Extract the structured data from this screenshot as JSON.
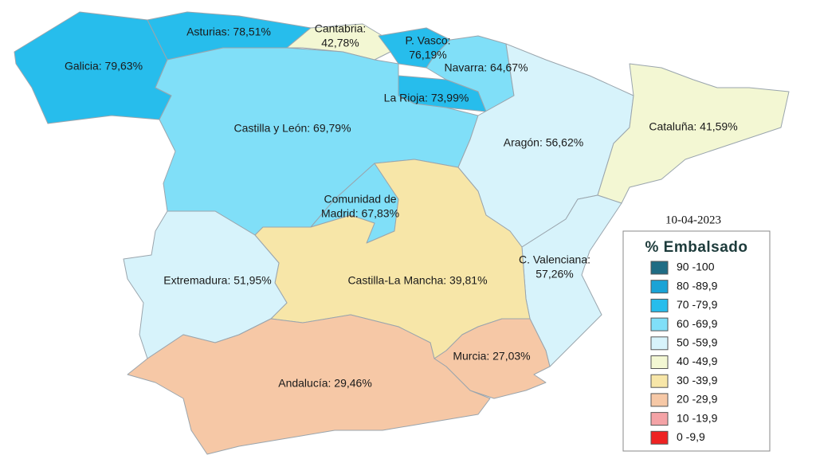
{
  "map": {
    "date": "10-04-2023",
    "regions": [
      {
        "lines": [
          "Galicia: 79,63%"
        ],
        "color": "#27bdec"
      },
      {
        "lines": [
          "Asturias: 78,51%"
        ],
        "color": "#27bdec"
      },
      {
        "lines": [
          "Cantabria:",
          "42,78%"
        ],
        "color": "#f3f7d3"
      },
      {
        "lines": [
          "P. Vasco:",
          "76,19%"
        ],
        "color": "#27bdec"
      },
      {
        "lines": [
          "Navarra: 64,67%"
        ],
        "color": "#80dff8"
      },
      {
        "lines": [
          "La Rioja: 73,99%"
        ],
        "color": "#27bdec"
      },
      {
        "lines": [
          "Castilla y León: 69,79%"
        ],
        "color": "#80dff8"
      },
      {
        "lines": [
          "Comunidad de",
          "Madrid: 67,83%"
        ],
        "color": "#80dff8"
      },
      {
        "lines": [
          "Aragón: 56,62%"
        ],
        "color": "#d7f3fb"
      },
      {
        "lines": [
          "Cataluña: 41,59%"
        ],
        "color": "#f3f7d3"
      },
      {
        "lines": [
          "C. Valenciana:",
          "57,26%"
        ],
        "color": "#d7f3fb"
      },
      {
        "lines": [
          "Castilla-La Mancha: 39,81%"
        ],
        "color": "#f7e6a8"
      },
      {
        "lines": [
          "Extremadura: 51,95%"
        ],
        "color": "#d7f3fb"
      },
      {
        "lines": [
          "Murcia: 27,03%"
        ],
        "color": "#f6c8a6"
      },
      {
        "lines": [
          "Andalucía: 29,46%"
        ],
        "color": "#f6c8a6"
      }
    ],
    "legend": {
      "title": "% Embalsado",
      "items": [
        {
          "label": "90 -100",
          "color": "#1f6c84"
        },
        {
          "label": "80 -89,9",
          "color": "#1aa3d6"
        },
        {
          "label": "70 -79,9",
          "color": "#27bdec"
        },
        {
          "label": "60 -69,9",
          "color": "#80dff8"
        },
        {
          "label": "50 -59,9",
          "color": "#d7f3fb"
        },
        {
          "label": "40 -49,9",
          "color": "#f3f7d3"
        },
        {
          "label": "30 -39,9",
          "color": "#f7e6a8"
        },
        {
          "label": "20 -29,9",
          "color": "#f6c8a6"
        },
        {
          "label": "10 -19,9",
          "color": "#f4a3a6"
        },
        {
          "label": "0 -9,9",
          "color": "#ee2222"
        }
      ]
    }
  }
}
